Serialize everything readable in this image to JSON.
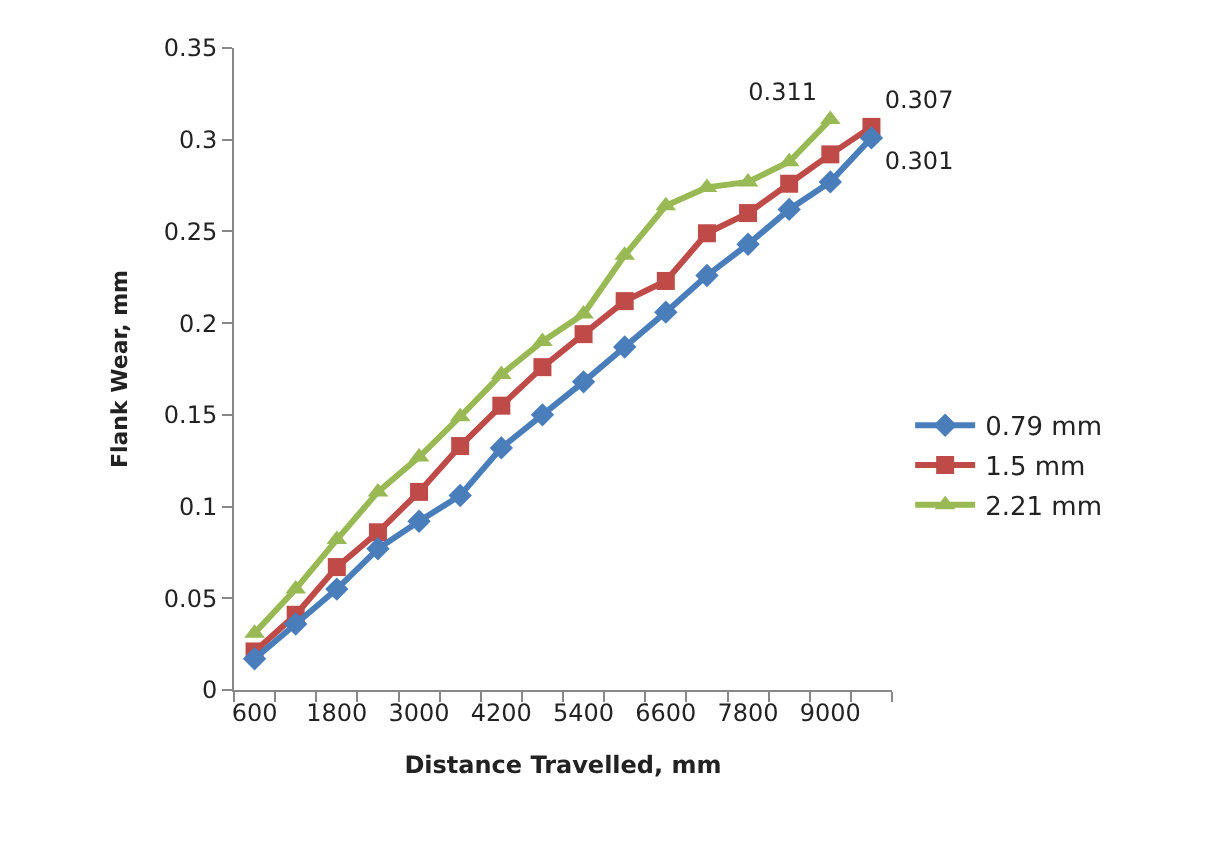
{
  "chart_data": {
    "type": "line",
    "xlabel": "Distance Travelled, mm",
    "ylabel": "Flank Wear, mm",
    "categories": [
      "600",
      null,
      "1800",
      null,
      "3000",
      null,
      "4200",
      null,
      "5400",
      null,
      "6600",
      null,
      "7800",
      null,
      "9000",
      null
    ],
    "series": [
      {
        "name": "0.79 mm",
        "color": "#4a7ebb",
        "marker": "diamond",
        "values": [
          0.017,
          0.036,
          0.055,
          0.077,
          0.092,
          0.106,
          0.132,
          0.15,
          0.168,
          0.187,
          0.206,
          0.226,
          0.243,
          0.262,
          0.277,
          0.301
        ],
        "value_labels": [
          null,
          null,
          null,
          null,
          null,
          null,
          null,
          null,
          null,
          null,
          null,
          null,
          null,
          null,
          null,
          "0.301"
        ]
      },
      {
        "name": "1.5 mm",
        "color": "#be4b48",
        "marker": "square",
        "values": [
          0.021,
          0.041,
          0.067,
          0.086,
          0.108,
          0.133,
          0.155,
          0.176,
          0.194,
          0.212,
          0.223,
          0.249,
          0.26,
          0.276,
          0.292,
          0.307
        ],
        "value_labels": [
          null,
          null,
          null,
          null,
          null,
          null,
          null,
          null,
          null,
          null,
          null,
          null,
          null,
          null,
          null,
          "0.307"
        ]
      },
      {
        "name": "2.21 mm",
        "color": "#98b954",
        "marker": "triangle",
        "values": [
          0.031,
          0.055,
          0.082,
          0.108,
          0.127,
          0.149,
          0.172,
          0.19,
          0.205,
          0.237,
          0.264,
          0.274,
          0.277,
          0.288,
          0.311,
          null
        ],
        "value_labels": [
          null,
          null,
          null,
          null,
          null,
          null,
          null,
          null,
          null,
          null,
          null,
          null,
          null,
          null,
          "0.311",
          null
        ]
      }
    ],
    "ylim": [
      0,
      0.35
    ],
    "yticks": [
      0,
      0.05,
      0.1,
      0.15,
      0.2,
      0.25,
      0.3,
      0.35
    ],
    "legend": "right",
    "line_style": "solid"
  }
}
